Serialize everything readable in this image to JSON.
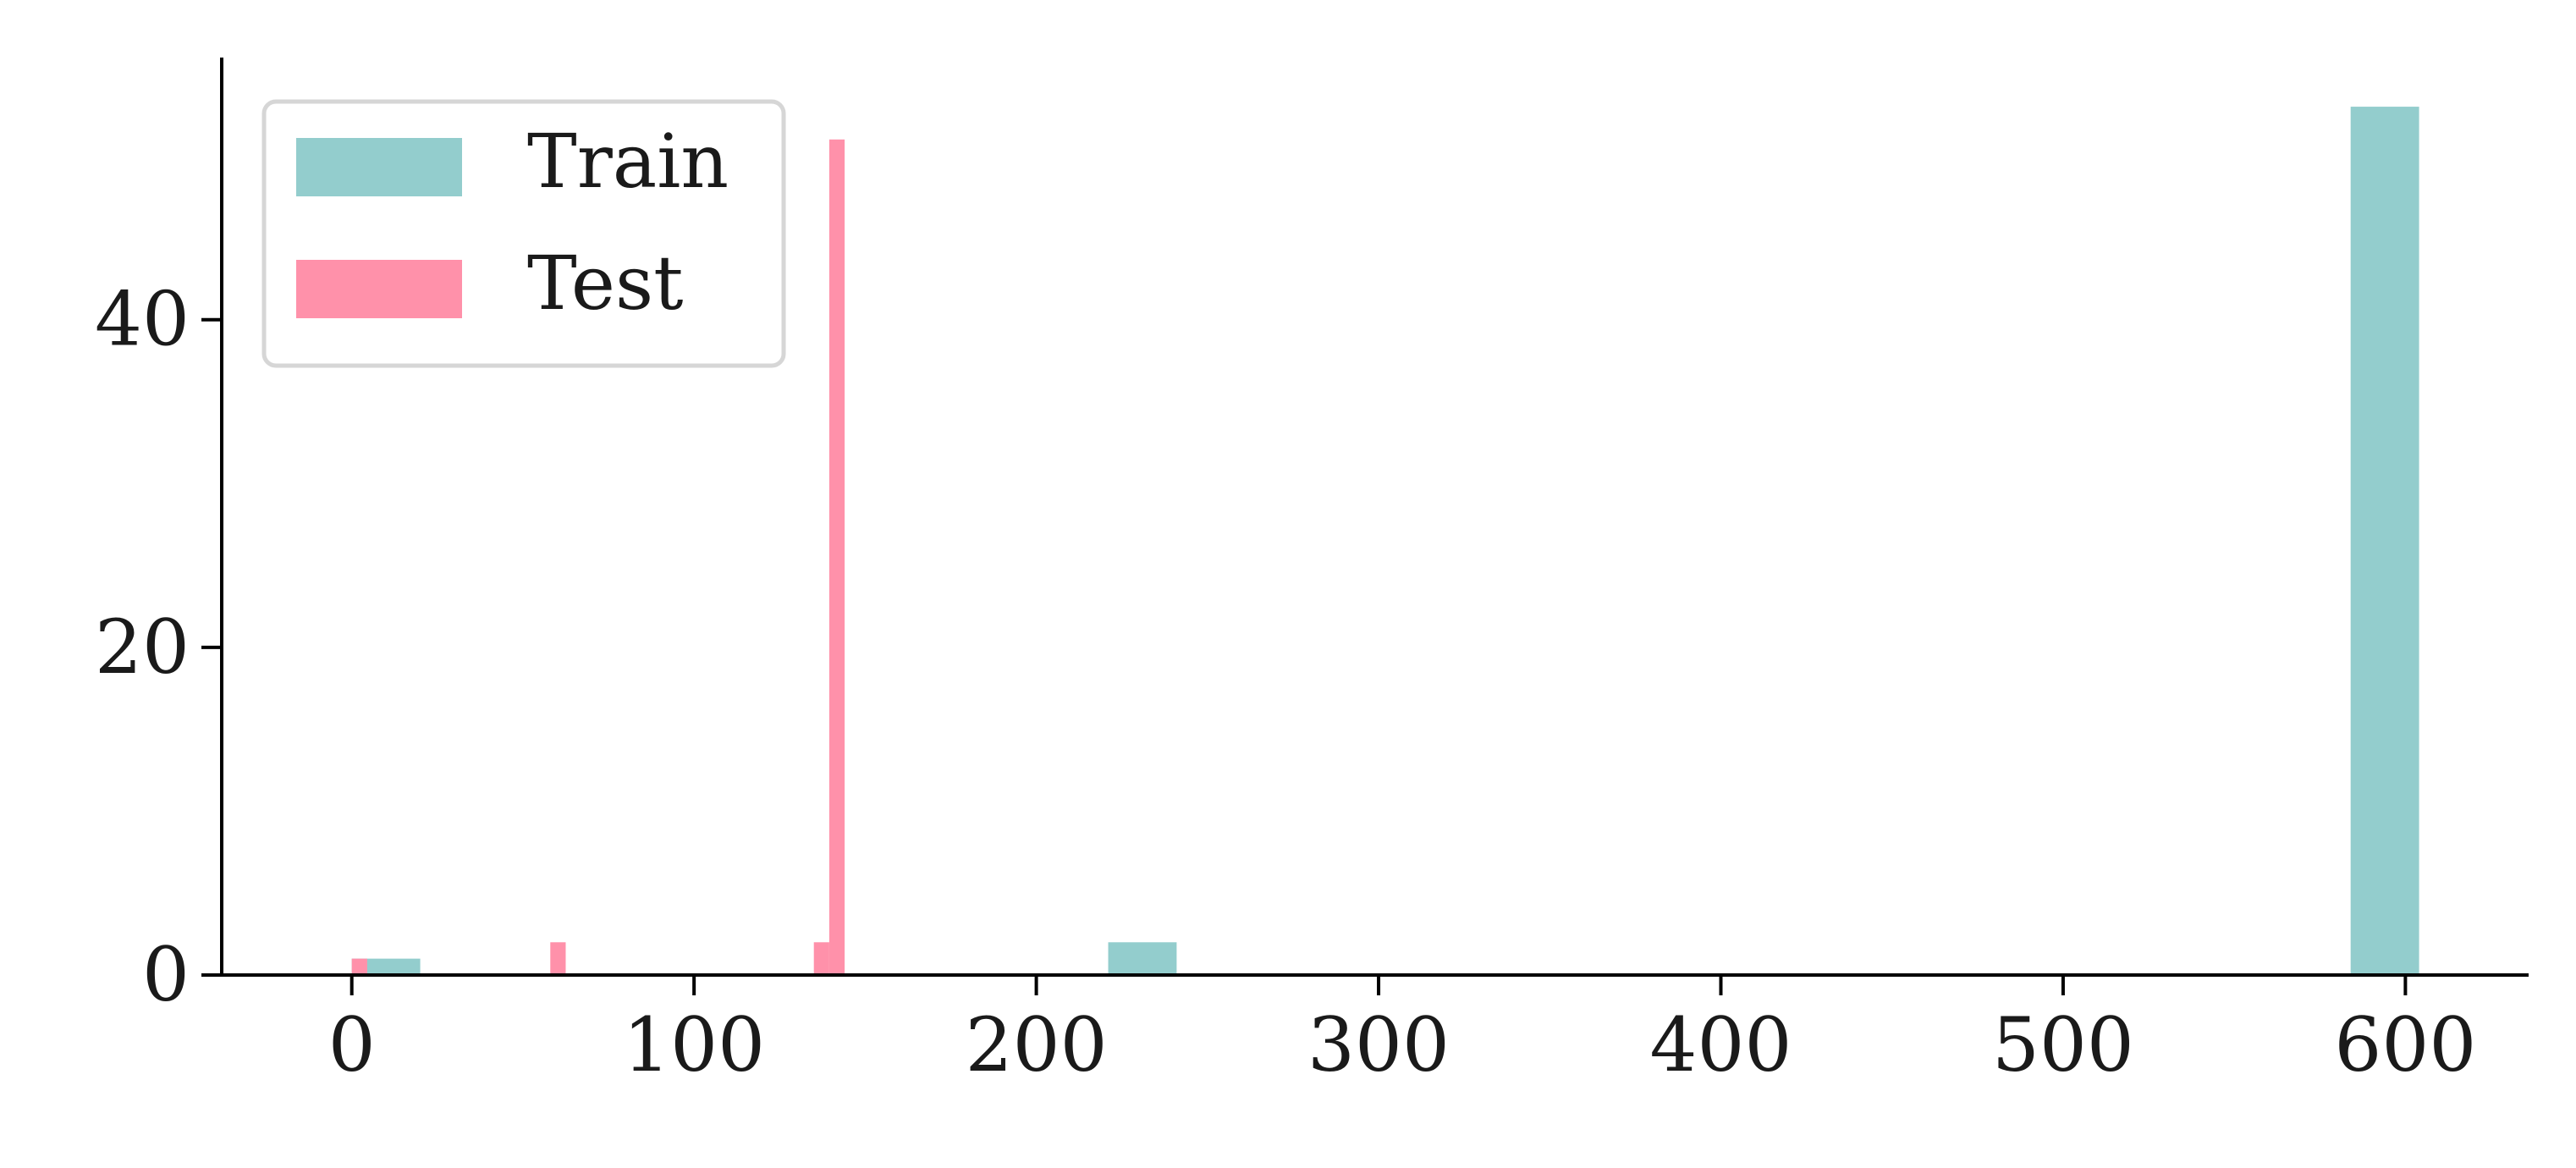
{
  "chart_data": {
    "type": "bar",
    "title": "",
    "xlabel": "",
    "ylabel": "",
    "xlim": [
      -38,
      636
    ],
    "ylim": [
      0,
      56
    ],
    "xticks": [
      0,
      100,
      200,
      300,
      400,
      500,
      600
    ],
    "yticks": [
      0,
      20,
      40
    ],
    "grid": false,
    "legend_placement": "top-left",
    "series": [
      {
        "name": "Train",
        "color": "#93cdcd",
        "bars": [
          {
            "x0": 0,
            "x1": 20,
            "value": 1
          },
          {
            "x0": 221,
            "x1": 241,
            "value": 2
          },
          {
            "x0": 584,
            "x1": 604,
            "value": 53
          }
        ]
      },
      {
        "name": "Test",
        "color": "#ff91aa",
        "bars": [
          {
            "x0": 0,
            "x1": 4.5,
            "value": 1
          },
          {
            "x0": 58,
            "x1": 62.5,
            "value": 2
          },
          {
            "x0": 135,
            "x1": 139.5,
            "value": 2
          },
          {
            "x0": 139.5,
            "x1": 144,
            "value": 51
          }
        ]
      }
    ]
  }
}
